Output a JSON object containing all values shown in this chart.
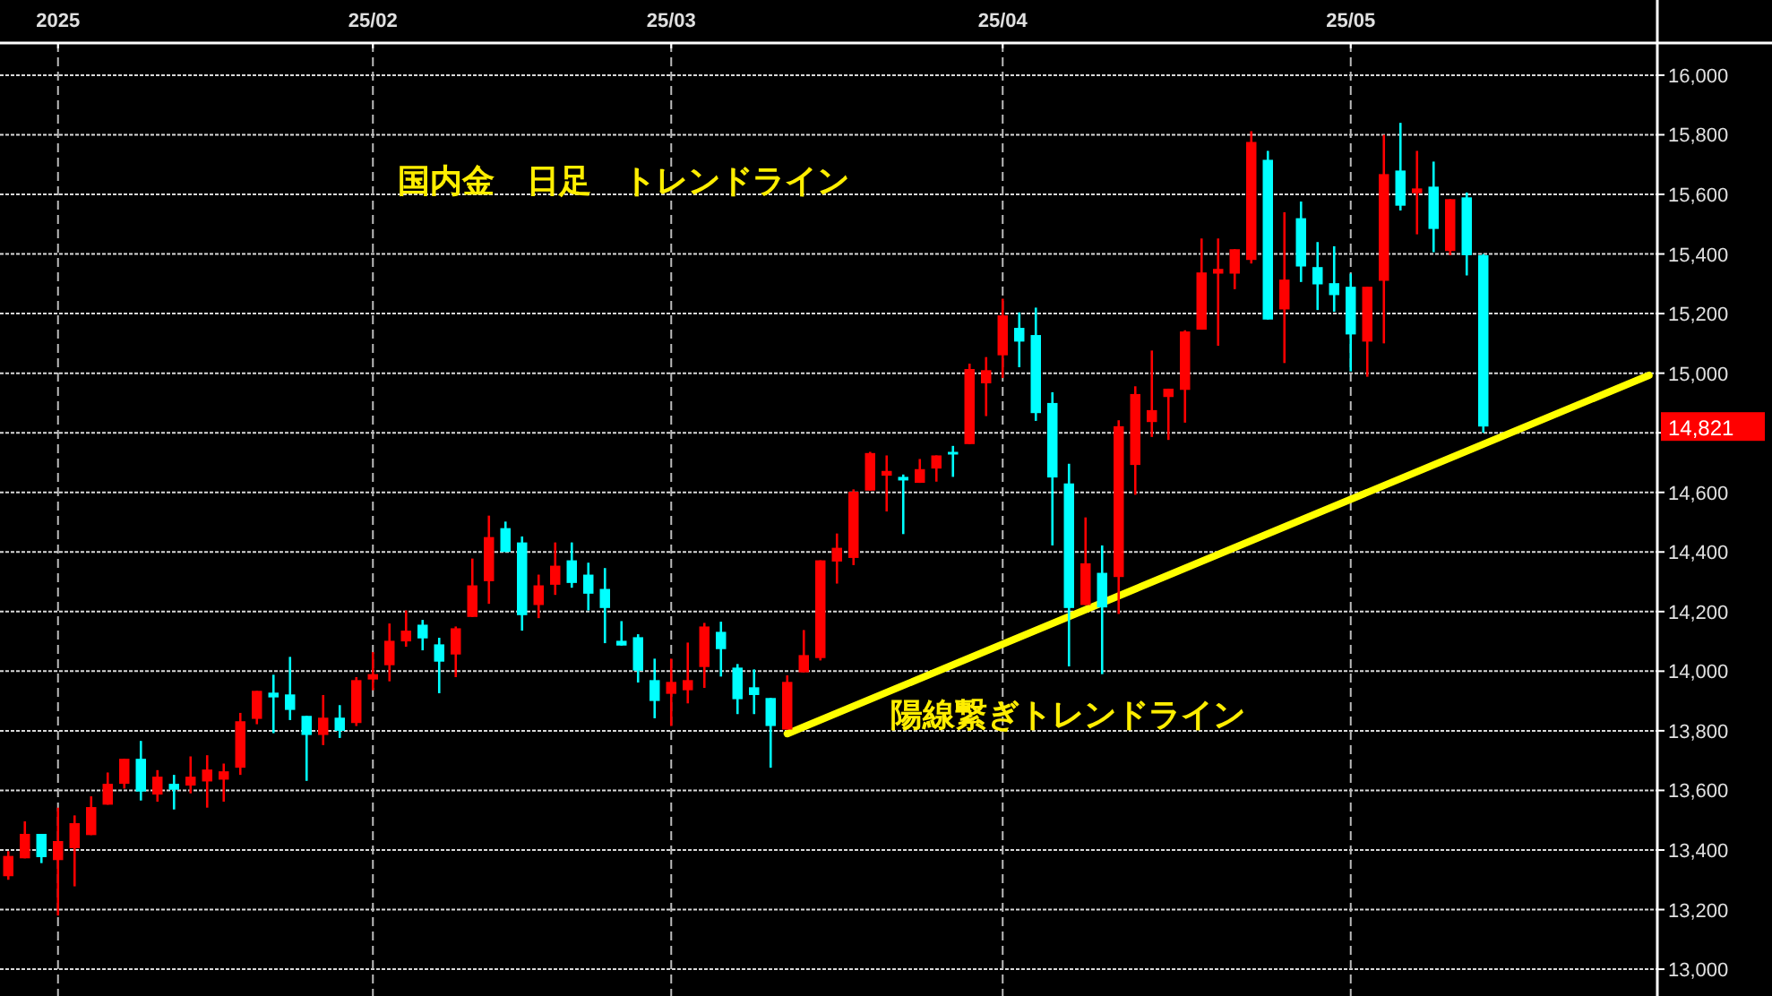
{
  "chart_data": {
    "type": "candlestick",
    "title": "国内金　日足　トレンドライン",
    "categories": [
      null,
      null,
      null,
      "2025",
      null,
      null,
      null,
      null,
      null,
      null,
      null,
      null,
      null,
      null,
      null,
      null,
      null,
      null,
      null,
      null,
      null,
      null,
      "25/02",
      null,
      null,
      null,
      null,
      null,
      null,
      null,
      null,
      null,
      null,
      null,
      null,
      null,
      null,
      null,
      null,
      null,
      "25/03",
      null,
      null,
      null,
      null,
      null,
      null,
      null,
      null,
      null,
      null,
      null,
      null,
      null,
      null,
      null,
      null,
      null,
      null,
      null,
      "25/04",
      null,
      null,
      null,
      null,
      null,
      null,
      null,
      null,
      null,
      null,
      null,
      null,
      null,
      null,
      null,
      null,
      null,
      null,
      null,
      null,
      "25/05",
      null,
      null,
      null,
      null,
      null,
      null,
      null,
      null,
      null,
      null,
      null,
      null,
      null,
      null,
      null,
      null,
      null,
      null
    ],
    "series": [
      {
        "ohlc": [
          [
            13312,
            13396,
            13300,
            13380
          ],
          [
            13372,
            13496,
            13372,
            13454
          ],
          [
            13454,
            13454,
            13356,
            13376
          ],
          [
            13366,
            13542,
            13180,
            13430
          ],
          [
            13406,
            13516,
            13278,
            13490
          ],
          [
            13450,
            13580,
            13450,
            13544
          ],
          [
            13552,
            13660,
            13552,
            13622
          ],
          [
            13622,
            13706,
            13606,
            13706
          ],
          [
            13706,
            13766,
            13566,
            13596
          ],
          [
            13586,
            13668,
            13562,
            13646
          ],
          [
            13622,
            13652,
            13536,
            13602
          ],
          [
            13616,
            13714,
            13590,
            13646
          ],
          [
            13630,
            13718,
            13542,
            13670
          ],
          [
            13636,
            13690,
            13562,
            13664
          ],
          [
            13676,
            13860,
            13652,
            13832
          ],
          [
            13840,
            13934,
            13822,
            13934
          ],
          [
            13928,
            13988,
            13792,
            13912
          ],
          [
            13922,
            14048,
            13836,
            13870
          ],
          [
            13850,
            13850,
            13632,
            13786
          ],
          [
            13786,
            13920,
            13752,
            13844
          ],
          [
            13844,
            13886,
            13776,
            13800
          ],
          [
            13826,
            13980,
            13816,
            13970
          ],
          [
            13972,
            14064,
            13936,
            13990
          ],
          [
            14020,
            14160,
            13966,
            14102
          ],
          [
            14100,
            14204,
            14082,
            14136
          ],
          [
            14156,
            14172,
            14070,
            14110
          ],
          [
            14090,
            14112,
            13926,
            14032
          ],
          [
            14056,
            14150,
            13980,
            14144
          ],
          [
            14182,
            14378,
            14182,
            14288
          ],
          [
            14302,
            14522,
            14226,
            14450
          ],
          [
            14480,
            14502,
            14400,
            14400
          ],
          [
            14432,
            14452,
            14136,
            14188
          ],
          [
            14222,
            14324,
            14178,
            14288
          ],
          [
            14290,
            14432,
            14256,
            14354
          ],
          [
            14372,
            14432,
            14280,
            14296
          ],
          [
            14324,
            14364,
            14204,
            14260
          ],
          [
            14276,
            14346,
            14094,
            14212
          ],
          [
            14102,
            14168,
            14086,
            14086
          ],
          [
            14114,
            14124,
            13962,
            14002
          ],
          [
            13970,
            14042,
            13842,
            13900
          ],
          [
            13924,
            14042,
            13816,
            13964
          ],
          [
            13936,
            14096,
            13892,
            13970
          ],
          [
            14014,
            14162,
            13944,
            14150
          ],
          [
            14132,
            14166,
            13982,
            14074
          ],
          [
            14012,
            14024,
            13856,
            13906
          ],
          [
            13946,
            14006,
            13856,
            13920
          ],
          [
            13910,
            13910,
            13676,
            13816
          ],
          [
            13804,
            13986,
            13804,
            13964
          ],
          [
            13996,
            14138,
            13996,
            14054
          ],
          [
            14044,
            14372,
            14036,
            14372
          ],
          [
            14368,
            14462,
            14294,
            14414
          ],
          [
            14380,
            14610,
            14356,
            14602
          ],
          [
            14606,
            14736,
            14606,
            14732
          ],
          [
            14656,
            14724,
            14536,
            14672
          ],
          [
            14652,
            14660,
            14460,
            14640
          ],
          [
            14632,
            14712,
            14632,
            14678
          ],
          [
            14680,
            14724,
            14636,
            14724
          ],
          [
            14736,
            14756,
            14652,
            14728
          ],
          [
            14762,
            15032,
            14762,
            15014
          ],
          [
            14966,
            15054,
            14856,
            15010
          ],
          [
            15060,
            15250,
            14984,
            15194
          ],
          [
            15152,
            15204,
            15020,
            15106
          ],
          [
            15128,
            15220,
            14840,
            14866
          ],
          [
            14900,
            14936,
            14422,
            14650
          ],
          [
            14630,
            14696,
            14016,
            14212
          ],
          [
            14222,
            14516,
            14222,
            14362
          ],
          [
            14330,
            14422,
            13990,
            14214
          ],
          [
            14316,
            14842,
            14192,
            14822
          ],
          [
            14692,
            14956,
            14592,
            14930
          ],
          [
            14836,
            15076,
            14786,
            14876
          ],
          [
            14920,
            14948,
            14776,
            14948
          ],
          [
            14944,
            15144,
            14834,
            15140
          ],
          [
            15146,
            15452,
            15146,
            15338
          ],
          [
            15334,
            15452,
            15092,
            15350
          ],
          [
            15334,
            15416,
            15282,
            15416
          ],
          [
            15380,
            15812,
            15368,
            15776
          ],
          [
            15716,
            15746,
            15180,
            15180
          ],
          [
            15214,
            15540,
            15034,
            15314
          ],
          [
            15520,
            15576,
            15306,
            15358
          ],
          [
            15356,
            15440,
            15212,
            15298
          ],
          [
            15302,
            15426,
            15206,
            15262
          ],
          [
            15290,
            15334,
            15006,
            15130
          ],
          [
            15106,
            15290,
            14988,
            15290
          ],
          [
            15310,
            15800,
            15100,
            15668
          ],
          [
            15680,
            15840,
            15546,
            15562
          ],
          [
            15604,
            15746,
            15466,
            15620
          ],
          [
            15626,
            15710,
            15406,
            15484
          ],
          [
            15410,
            15584,
            15396,
            15584
          ],
          [
            15590,
            15606,
            15328,
            15396
          ],
          [
            15396,
            15400,
            14800,
            14821
          ],
          null,
          null,
          null,
          null,
          null,
          null,
          null,
          null,
          null,
          null
        ],
        "colors": [
          "#ff0000",
          "#ff0000",
          "#00ffff",
          "#ff0000",
          "#ff0000",
          "#ff0000",
          "#ff0000",
          "#ff0000",
          "#00ffff",
          "#ff0000",
          "#00ffff",
          "#ff0000",
          "#ff0000",
          "#ff0000",
          "#ff0000",
          "#ff0000",
          "#00ffff",
          "#00ffff",
          "#00ffff",
          "#ff0000",
          "#00ffff",
          "#ff0000",
          "#ff0000",
          "#ff0000",
          "#ff0000",
          "#00ffff",
          "#00ffff",
          "#ff0000",
          "#ff0000",
          "#ff0000",
          "#00ffff",
          "#00ffff",
          "#ff0000",
          "#ff0000",
          "#00ffff",
          "#00ffff",
          "#00ffff",
          "#00ffff",
          "#00ffff",
          "#00ffff",
          "#ff0000",
          "#ff0000",
          "#ff0000",
          "#00ffff",
          "#00ffff",
          "#00ffff",
          "#00ffff",
          "#ff0000",
          "#ff0000",
          "#ff0000",
          "#ff0000",
          "#ff0000",
          "#ff0000",
          "#ff0000",
          "#00ffff",
          "#ff0000",
          "#ff0000",
          "#00ffff",
          "#ff0000",
          "#ff0000",
          "#ff0000",
          "#00ffff",
          "#00ffff",
          "#00ffff",
          "#00ffff",
          "#ff0000",
          "#00ffff",
          "#ff0000",
          "#ff0000",
          "#ff0000",
          "#ff0000",
          "#ff0000",
          "#ff0000",
          "#ff0000",
          "#ff0000",
          "#ff0000",
          "#00ffff",
          "#ff0000",
          "#00ffff",
          "#00ffff",
          "#00ffff",
          "#00ffff",
          "#ff0000",
          "#ff0000",
          "#00ffff",
          "#ff0000",
          "#00ffff",
          "#ff0000",
          "#00ffff",
          "#00ffff",
          null,
          null,
          null,
          null,
          null,
          null,
          null,
          null,
          null,
          null
        ]
      },
      {
        "type": "line",
        "color": "#ffff00",
        "values": [
          null,
          null,
          null,
          null,
          null,
          null,
          null,
          null,
          null,
          null,
          null,
          null,
          null,
          null,
          null,
          null,
          null,
          null,
          null,
          null,
          null,
          null,
          null,
          null,
          null,
          null,
          null,
          null,
          null,
          null,
          null,
          null,
          null,
          null,
          null,
          null,
          null,
          null,
          null,
          null,
          null,
          null,
          null,
          null,
          null,
          null,
          null,
          13790,
          null,
          null,
          null,
          null,
          null,
          null,
          null,
          null,
          null,
          null,
          null,
          null,
          null,
          null,
          null,
          null,
          null,
          null,
          null,
          null,
          null,
          null,
          null,
          null,
          null,
          null,
          null,
          null,
          null,
          null,
          null,
          null,
          null,
          null,
          null,
          null,
          null,
          null,
          null,
          null,
          null,
          null,
          null,
          null,
          null,
          null,
          null,
          null,
          null,
          null,
          null,
          14993
        ]
      }
    ],
    "ylim": [
      12910,
      16108
    ],
    "yticks": [
      {
        "value": 13000,
        "label": "13,000"
      },
      {
        "value": 13200,
        "label": "13,200"
      },
      {
        "value": 13400,
        "label": "13,400"
      },
      {
        "value": 13600,
        "label": "13,600"
      },
      {
        "value": 13800,
        "label": "13,800"
      },
      {
        "value": 14000,
        "label": "14,000"
      },
      {
        "value": 14200,
        "label": "14,200"
      },
      {
        "value": 14400,
        "label": "14,400"
      },
      {
        "value": 14600,
        "label": "14,600"
      },
      {
        "value": 14800,
        "label": null
      },
      {
        "value": 15000,
        "label": "15,000"
      },
      {
        "value": 15200,
        "label": "15,200"
      },
      {
        "value": 15400,
        "label": "15,400"
      },
      {
        "value": 15600,
        "label": "15,600"
      },
      {
        "value": 15800,
        "label": "15,800"
      },
      {
        "value": 16000,
        "label": "16,000"
      }
    ],
    "annotations": [
      {
        "text": "陽線繋ぎトレンドライン"
      },
      "14,821"
    ],
    "grid": true
  }
}
